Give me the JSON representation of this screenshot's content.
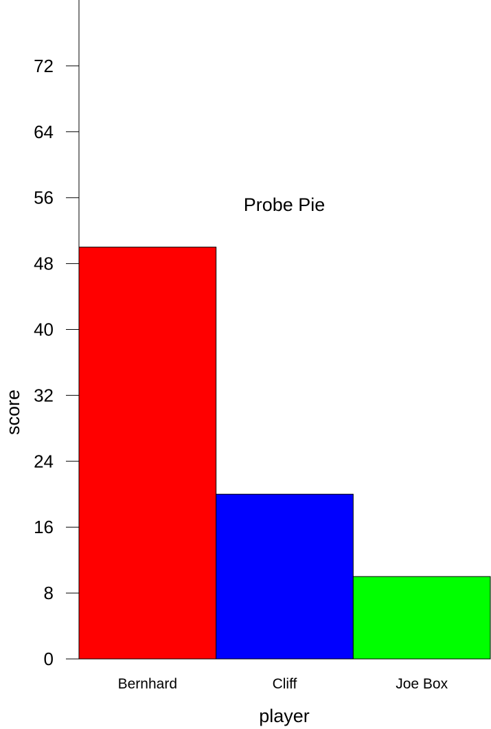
{
  "chart_data": {
    "type": "bar",
    "title": "",
    "xlabel": "player",
    "ylabel": "score",
    "annotation": "Probe Pie",
    "categories": [
      "Bernhard",
      "Cliff",
      "Joe Box"
    ],
    "values": [
      50,
      20,
      10
    ],
    "colors": [
      "#ff0000",
      "#0000ff",
      "#00ff00"
    ],
    "ylim": [
      0,
      80
    ],
    "yticks": [
      0,
      8,
      16,
      24,
      32,
      40,
      48,
      56,
      64,
      72
    ],
    "grid": false,
    "legend": "none"
  }
}
